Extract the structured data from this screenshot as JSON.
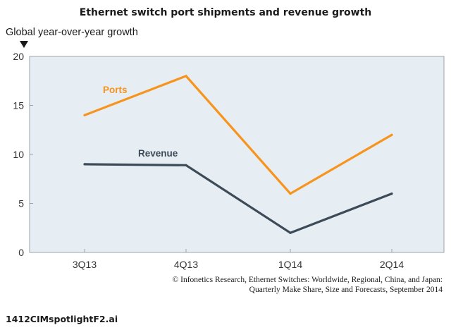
{
  "chart_data": {
    "type": "line",
    "title": "Ethernet switch port shipments and revenue growth",
    "ylabel": "Global year-over-year growth",
    "xlabel": "",
    "categories": [
      "3Q13",
      "4Q13",
      "1Q14",
      "2Q14"
    ],
    "ylim": [
      0,
      20
    ],
    "yticks": [
      0,
      5,
      10,
      15,
      20
    ],
    "grid": false,
    "series": [
      {
        "name": "Ports",
        "values": [
          14,
          18,
          6,
          12
        ],
        "color": "#f7941d"
      },
      {
        "name": "Revenue",
        "values": [
          9,
          8.9,
          2,
          6
        ],
        "color": "#3d4a57"
      }
    ],
    "plot_background": "#e6edf3",
    "source_lines": [
      "© Infonetics Research, Ethernet Switches: Worldwide, Regional, China, and Japan:",
      "Quarterly Make Share, Size and Forecasts, September 2014"
    ]
  },
  "footer": {
    "file_id": "1412CIMspotlightF2.ai"
  }
}
